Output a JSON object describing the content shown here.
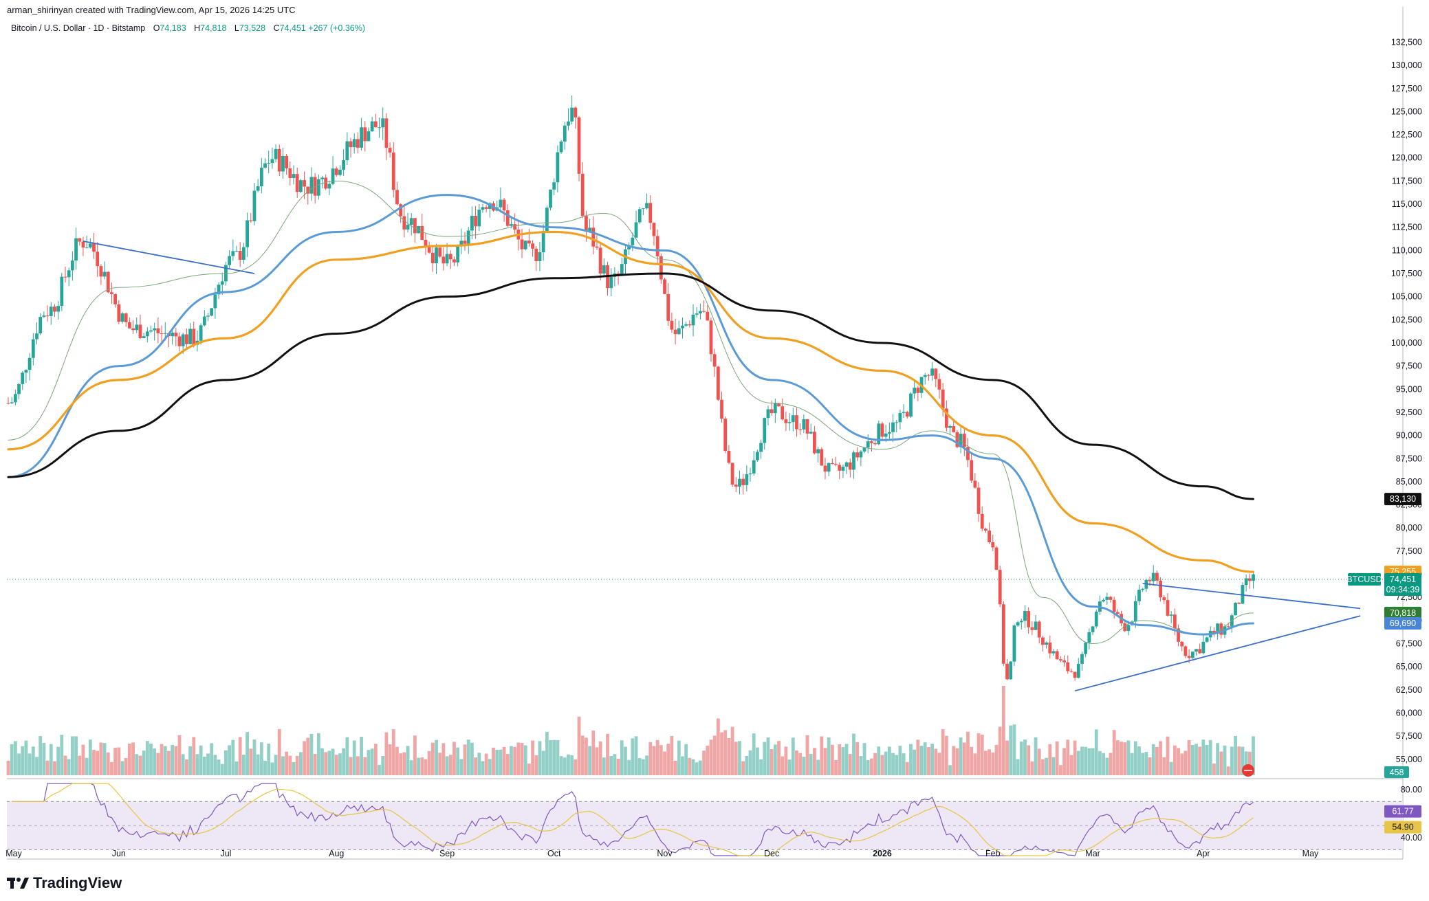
{
  "header": {
    "credit": "arman_shirinyan created with TradingView.com, Apr 15, 2026 14:25 UTC",
    "symbol_line": "Bitcoin / U.S. Dollar · 1D · Bitstamp",
    "ohlc": [
      {
        "key": "O",
        "value": "74,183"
      },
      {
        "key": "H",
        "value": "74,818"
      },
      {
        "key": "L",
        "value": "73,528"
      },
      {
        "key": "C",
        "value": "74,451 +267 (+0.36%)"
      }
    ]
  },
  "brand": {
    "name": "TradingView"
  },
  "colors": {
    "up": "#26a69a",
    "down": "#ef5350",
    "vol_up": "#92cfc6",
    "vol_down": "#f0a6a4",
    "sma20": "#7aa67a",
    "sma50": "#5b9bd5",
    "sma100": "#f0a020",
    "sma200": "#111111",
    "trend": "#3b6fc4",
    "rsi": "#7e57c2",
    "rsi_ma": "#e8c547"
  },
  "chart_data": {
    "type": "candlestick",
    "y_axis": {
      "min": 53500,
      "max": 133500,
      "ticks": [
        "132,500",
        "130,000",
        "127,500",
        "125,000",
        "122,500",
        "120,000",
        "117,500",
        "115,000",
        "112,500",
        "110,000",
        "107,500",
        "105,000",
        "102,500",
        "100,000",
        "97,500",
        "95,000",
        "92,500",
        "90,000",
        "87,500",
        "85,000",
        "82,500",
        "80,000",
        "77,500",
        "75,000",
        "72,500",
        "70,000",
        "67,500",
        "65,000",
        "62,500",
        "60,000",
        "57,500",
        "55,000"
      ]
    },
    "x_axis": {
      "labels": [
        "May",
        "Jun",
        "Jul",
        "Aug",
        "Sep",
        "Oct",
        "Nov",
        "Dec",
        "2026",
        "Feb",
        "Mar",
        "Apr",
        "May"
      ]
    },
    "trend_path": [
      {
        "date": "2025-05-01",
        "close": 93500
      },
      {
        "date": "2025-05-12",
        "close": 103500
      },
      {
        "date": "2025-05-22",
        "close": 111000
      },
      {
        "date": "2025-06-05",
        "close": 101500
      },
      {
        "date": "2025-06-22",
        "close": 100500
      },
      {
        "date": "2025-07-03",
        "close": 109000
      },
      {
        "date": "2025-07-14",
        "close": 120000
      },
      {
        "date": "2025-07-24",
        "close": 117000
      },
      {
        "date": "2025-08-13",
        "close": 123500
      },
      {
        "date": "2025-08-20",
        "close": 113500
      },
      {
        "date": "2025-09-01",
        "close": 108500
      },
      {
        "date": "2025-09-13",
        "close": 115500
      },
      {
        "date": "2025-09-25",
        "close": 109500
      },
      {
        "date": "2025-10-06",
        "close": 125000
      },
      {
        "date": "2025-10-10",
        "close": 112000
      },
      {
        "date": "2025-10-17",
        "close": 106500
      },
      {
        "date": "2025-10-27",
        "close": 114000
      },
      {
        "date": "2025-11-04",
        "close": 101000
      },
      {
        "date": "2025-11-11",
        "close": 103500
      },
      {
        "date": "2025-11-21",
        "close": 84500
      },
      {
        "date": "2025-12-02",
        "close": 92500
      },
      {
        "date": "2025-12-08",
        "close": 91500
      },
      {
        "date": "2025-12-18",
        "close": 86000
      },
      {
        "date": "2026-01-04",
        "close": 91000
      },
      {
        "date": "2026-01-14",
        "close": 96500
      },
      {
        "date": "2026-01-22",
        "close": 89500
      },
      {
        "date": "2026-02-01",
        "close": 78500
      },
      {
        "date": "2026-02-05",
        "close": 63500
      },
      {
        "date": "2026-02-08",
        "close": 70500
      },
      {
        "date": "2026-02-24",
        "close": 64500
      },
      {
        "date": "2026-03-04",
        "close": 72500
      },
      {
        "date": "2026-03-10",
        "close": 69500
      },
      {
        "date": "2026-03-17",
        "close": 74500
      },
      {
        "date": "2026-03-28",
        "close": 66500
      },
      {
        "date": "2026-04-06",
        "close": 69000
      },
      {
        "date": "2026-04-15",
        "close": 74451
      }
    ],
    "series": [
      {
        "name": "MA 20",
        "points": [
          {
            "date": "2025-05-01",
            "value": 89500
          },
          {
            "date": "2025-06-01",
            "value": 106000
          },
          {
            "date": "2025-07-01",
            "value": 107500
          },
          {
            "date": "2025-08-01",
            "value": 117500
          },
          {
            "date": "2025-09-01",
            "value": 111500
          },
          {
            "date": "2025-10-01",
            "value": 113000
          },
          {
            "date": "2025-10-15",
            "value": 114000
          },
          {
            "date": "2025-11-01",
            "value": 109000
          },
          {
            "date": "2025-12-01",
            "value": 93500
          },
          {
            "date": "2026-01-01",
            "value": 88500
          },
          {
            "date": "2026-01-15",
            "value": 90500
          },
          {
            "date": "2026-02-01",
            "value": 88000
          },
          {
            "date": "2026-02-15",
            "value": 72500
          },
          {
            "date": "2026-03-01",
            "value": 67500
          },
          {
            "date": "2026-03-15",
            "value": 70000
          },
          {
            "date": "2026-04-01",
            "value": 68500
          },
          {
            "date": "2026-04-15",
            "value": 70818
          }
        ]
      },
      {
        "name": "MA 50",
        "points": [
          {
            "date": "2025-05-01",
            "value": 85500
          },
          {
            "date": "2025-06-01",
            "value": 97500
          },
          {
            "date": "2025-07-01",
            "value": 105500
          },
          {
            "date": "2025-08-01",
            "value": 112000
          },
          {
            "date": "2025-09-01",
            "value": 116000
          },
          {
            "date": "2025-10-01",
            "value": 112500
          },
          {
            "date": "2025-11-01",
            "value": 110000
          },
          {
            "date": "2025-12-01",
            "value": 96000
          },
          {
            "date": "2026-01-01",
            "value": 89500
          },
          {
            "date": "2026-01-15",
            "value": 90000
          },
          {
            "date": "2026-02-01",
            "value": 87500
          },
          {
            "date": "2026-03-01",
            "value": 71500
          },
          {
            "date": "2026-03-15",
            "value": 69500
          },
          {
            "date": "2026-04-01",
            "value": 68500
          },
          {
            "date": "2026-04-15",
            "value": 69690
          }
        ]
      },
      {
        "name": "MA 100",
        "points": [
          {
            "date": "2025-05-01",
            "value": 88500
          },
          {
            "date": "2025-06-01",
            "value": 96000
          },
          {
            "date": "2025-07-01",
            "value": 100500
          },
          {
            "date": "2025-08-01",
            "value": 109000
          },
          {
            "date": "2025-09-01",
            "value": 110500
          },
          {
            "date": "2025-10-01",
            "value": 112000
          },
          {
            "date": "2025-11-01",
            "value": 108500
          },
          {
            "date": "2025-12-01",
            "value": 100500
          },
          {
            "date": "2026-01-01",
            "value": 97000
          },
          {
            "date": "2026-02-01",
            "value": 90000
          },
          {
            "date": "2026-03-01",
            "value": 80500
          },
          {
            "date": "2026-04-01",
            "value": 76500
          },
          {
            "date": "2026-04-15",
            "value": 75255
          }
        ]
      },
      {
        "name": "MA 200",
        "points": [
          {
            "date": "2025-05-01",
            "value": 85500
          },
          {
            "date": "2025-06-01",
            "value": 90500
          },
          {
            "date": "2025-07-01",
            "value": 96000
          },
          {
            "date": "2025-08-01",
            "value": 101000
          },
          {
            "date": "2025-09-01",
            "value": 105000
          },
          {
            "date": "2025-10-01",
            "value": 107000
          },
          {
            "date": "2025-11-01",
            "value": 107500
          },
          {
            "date": "2025-12-01",
            "value": 103500
          },
          {
            "date": "2026-01-01",
            "value": 100000
          },
          {
            "date": "2026-02-01",
            "value": 96000
          },
          {
            "date": "2026-03-01",
            "value": 89000
          },
          {
            "date": "2026-04-01",
            "value": 84500
          },
          {
            "date": "2026-04-15",
            "value": 83130
          }
        ]
      }
    ],
    "trendlines": [
      {
        "name": "resistance-2025",
        "from": {
          "date": "2025-05-22",
          "value": 111000
        },
        "to": {
          "date": "2025-07-09",
          "value": 107500
        }
      },
      {
        "name": "triangle-upper",
        "from": {
          "date": "2026-03-15",
          "value": 74000
        },
        "to": {
          "date": "2026-05-15",
          "value": 71300
        }
      },
      {
        "name": "triangle-lower",
        "from": {
          "date": "2026-02-24",
          "value": 62400
        },
        "to": {
          "date": "2026-05-15",
          "value": 70500
        }
      }
    ],
    "price_badges": [
      {
        "label": "75,255",
        "value": 75255,
        "color": "#f0a020",
        "text_color": "#131722"
      },
      {
        "label": "BTCUSD",
        "value": 74451,
        "color": "#089981",
        "text_color": "#ffffff",
        "is_symbol": true
      },
      {
        "label": "74,451",
        "value": 74451,
        "color": "#089981",
        "text_color": "#ffffff"
      },
      {
        "label": "09:34:39",
        "value": 73400,
        "color": "#089981",
        "text_color": "#ffffff"
      },
      {
        "label": "70,818",
        "value": 70818,
        "color": "#2e7d32",
        "text_color": "#ffffff"
      },
      {
        "label": "69,690",
        "value": 69690,
        "color": "#4a86d8",
        "text_color": "#ffffff"
      },
      {
        "label": "83,130",
        "value": 83130,
        "color": "#111111",
        "text_color": "#ffffff"
      }
    ],
    "volume": {
      "last_label": "458"
    },
    "rsi": {
      "y_ticks": [
        "80.00",
        "40.00"
      ],
      "value_label": "61.77",
      "ma_label": "54.90",
      "upper": 70,
      "lower": 30
    },
    "grid": false,
    "legend": "top-left"
  }
}
